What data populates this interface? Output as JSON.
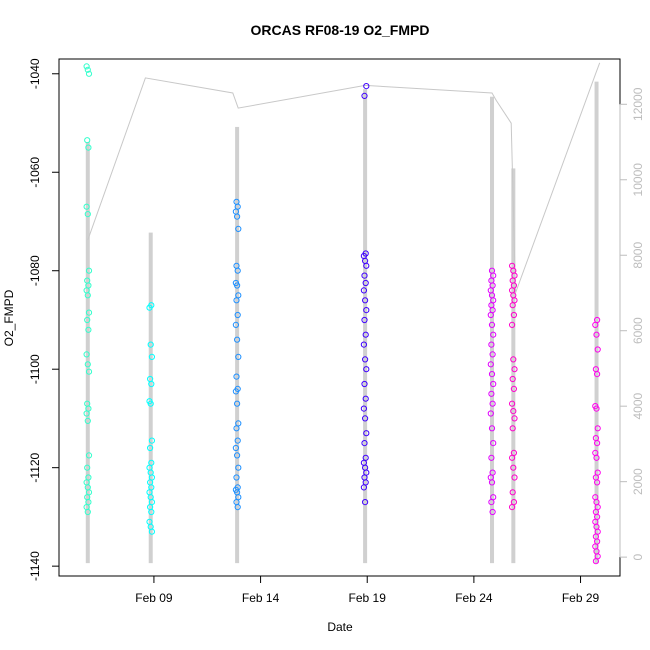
{
  "chart_data": {
    "type": "scatter",
    "title": "ORCAS RF08-19 O2_FMPD",
    "xlabel": "Date",
    "ylabel": "O2_FMPD",
    "x_ticks": [
      "Feb 09",
      "Feb 14",
      "Feb 19",
      "Feb 24",
      "Feb 29"
    ],
    "x_tick_days": [
      9,
      14,
      19,
      24,
      29
    ],
    "xlim_days": [
      4.55,
      30.85
    ],
    "ylim": [
      -1142,
      -1037
    ],
    "y_ticks": [
      -1140,
      -1120,
      -1100,
      -1080,
      -1060,
      -1040
    ],
    "right_axis": {
      "label": "",
      "color": "#bdbdbd",
      "ylim": [
        -500,
        13200
      ],
      "ticks": [
        0,
        2000,
        4000,
        6000,
        8000,
        10000,
        12000
      ]
    },
    "grid": false,
    "series": [
      {
        "color": "#33ffcc",
        "day": 5.9,
        "values": [
          -1038.5,
          -1039.2,
          -1040,
          -1053.5,
          -1055,
          -1067,
          -1068.5,
          -1080,
          -1082,
          -1083,
          -1084,
          -1085,
          -1088.5,
          -1090,
          -1092,
          -1097,
          -1099,
          -1100.5,
          -1107,
          -1108,
          -1109,
          -1110.5,
          -1117.5,
          -1120,
          -1122,
          -1123,
          -1124,
          -1125,
          -1126,
          -1127,
          -1128,
          -1129
        ]
      },
      {
        "color": "#00ffff",
        "day": 8.85,
        "values": [
          -1087,
          -1087.5,
          -1095,
          -1097.5,
          -1102,
          -1103,
          -1106.5,
          -1107,
          -1114.5,
          -1116,
          -1119,
          -1120,
          -1121,
          -1122,
          -1123,
          -1124,
          -1125,
          -1126,
          -1127,
          -1128,
          -1129,
          -1131,
          -1132,
          -1133
        ]
      },
      {
        "color": "#1e90ff",
        "day": 12.9,
        "values": [
          -1066,
          -1067,
          -1068,
          -1069,
          -1071.5,
          -1079,
          -1080,
          -1082.5,
          -1083,
          -1085,
          -1086,
          -1089,
          -1091,
          -1094,
          -1097.5,
          -1101.5,
          -1104,
          -1104.5,
          -1107,
          -1111,
          -1112,
          -1114.5,
          -1116,
          -1117.5,
          -1120,
          -1122,
          -1124,
          -1124.5,
          -1125,
          -1126,
          -1127,
          -1128
        ]
      },
      {
        "color": "#3f00ff",
        "day": 18.9,
        "values": [
          -1042.5,
          -1044.5,
          -1076.5,
          -1077,
          -1078,
          -1079,
          -1081,
          -1082.5,
          -1084,
          -1086,
          -1088,
          -1090,
          -1093,
          -1095,
          -1098,
          -1100,
          -1103,
          -1106,
          -1108,
          -1110,
          -1113,
          -1115,
          -1118,
          -1119,
          -1120,
          -1121,
          -1122,
          -1123,
          -1124,
          -1127
        ]
      },
      {
        "color": "#e100ff",
        "day": 24.85,
        "values": [
          -1080,
          -1081,
          -1082,
          -1083,
          -1084,
          -1085,
          -1086,
          -1087,
          -1088,
          -1089,
          -1091,
          -1093,
          -1095,
          -1097,
          -1099,
          -1101,
          -1103,
          -1105,
          -1107,
          -1109,
          -1112,
          -1115,
          -1118,
          -1121,
          -1122,
          -1123,
          -1126,
          -1127,
          -1129
        ]
      },
      {
        "color": "#ff00cc",
        "day": 25.85,
        "values": [
          -1079,
          -1080,
          -1081,
          -1082,
          -1083,
          -1084,
          -1085,
          -1086,
          -1087,
          -1089,
          -1091,
          -1098,
          -1100,
          -1102,
          -1104,
          -1107,
          -1108.5,
          -1110,
          -1112,
          -1117,
          -1118,
          -1120,
          -1122,
          -1125,
          -1127,
          -1128
        ]
      },
      {
        "color": "#ff00ee",
        "day": 29.75,
        "values": [
          -1090,
          -1091,
          -1093,
          -1096,
          -1100,
          -1101,
          -1107.5,
          -1108,
          -1112,
          -1114,
          -1115,
          -1117,
          -1118,
          -1121,
          -1122,
          -1123,
          -1126,
          -1127,
          -1128,
          -1129,
          -1130,
          -1131,
          -1132,
          -1133,
          -1134,
          -1135,
          -1136,
          -1137,
          -1138,
          -1139
        ]
      }
    ],
    "altitude_trace": {
      "color": "#c8c8c8",
      "segments": [
        {
          "day": 5.9,
          "top": 11000,
          "bottom": 0
        },
        {
          "day": 8.85,
          "top": 8600,
          "bottom": 0
        },
        {
          "day": 12.9,
          "top": 11400,
          "bottom": 0
        },
        {
          "day": 18.9,
          "top": 12400,
          "bottom": 0
        },
        {
          "day": 24.85,
          "top": 12200,
          "bottom": 0
        },
        {
          "day": 25.85,
          "top": 10300,
          "bottom": 0
        },
        {
          "day": 29.75,
          "top": 12600,
          "bottom": 0
        }
      ],
      "transit": [
        {
          "day": 5.9,
          "value": 8400
        },
        {
          "day": 8.6,
          "value": 12700
        },
        {
          "day": 12.7,
          "value": 12300
        },
        {
          "day": 12.95,
          "value": 11900
        },
        {
          "day": 18.9,
          "value": 12500
        },
        {
          "day": 24.85,
          "value": 12300
        },
        {
          "day": 25.05,
          "value": 12100
        },
        {
          "day": 25.75,
          "value": 11500
        },
        {
          "day": 25.95,
          "value": 7000
        },
        {
          "day": 29.7,
          "value": 12800
        },
        {
          "day": 29.9,
          "value": 13100
        }
      ]
    }
  }
}
